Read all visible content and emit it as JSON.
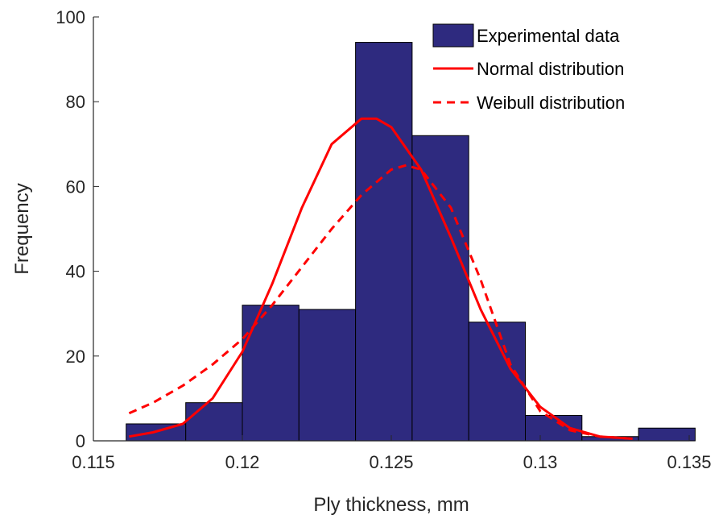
{
  "chart_data": {
    "type": "bar",
    "title": "",
    "xlabel": "Ply thickness, mm",
    "ylabel": "Frequency",
    "xlim": [
      0.115,
      0.135
    ],
    "ylim": [
      0,
      100
    ],
    "x_ticks": [
      0.115,
      0.12,
      0.125,
      0.13,
      0.135
    ],
    "x_tick_labels": [
      "0.115",
      "0.12",
      "0.125",
      "0.13",
      "0.135"
    ],
    "y_ticks": [
      0,
      20,
      40,
      60,
      80,
      100
    ],
    "y_tick_labels": [
      "0",
      "20",
      "40",
      "60",
      "80",
      "100"
    ],
    "grid": false,
    "legend_position": "top-right",
    "histogram": {
      "name": "Experimental data",
      "bin_edges": [
        0.1161,
        0.1181,
        0.12,
        0.1219,
        0.1238,
        0.1257,
        0.1276,
        0.1295,
        0.1314,
        0.1333,
        0.1352
      ],
      "counts": [
        4,
        9,
        32,
        31,
        94,
        72,
        28,
        6,
        1,
        3
      ],
      "color": "#2e2a7f"
    },
    "series": [
      {
        "name": "Normal distribution",
        "style": "solid",
        "color": "#ff0000",
        "x": [
          0.1162,
          0.117,
          0.118,
          0.119,
          0.12,
          0.121,
          0.122,
          0.123,
          0.124,
          0.1245,
          0.125,
          0.126,
          0.127,
          0.128,
          0.129,
          0.13,
          0.131,
          0.132,
          0.1331
        ],
        "y": [
          1,
          2,
          4,
          10,
          21,
          37,
          55,
          70,
          76,
          76,
          74,
          64,
          48,
          31,
          17,
          8,
          3,
          1,
          0.5
        ]
      },
      {
        "name": "Weibull distribution",
        "style": "dashed",
        "color": "#ff0000",
        "x": [
          0.1162,
          0.117,
          0.118,
          0.119,
          0.12,
          0.121,
          0.122,
          0.123,
          0.124,
          0.125,
          0.1255,
          0.126,
          0.127,
          0.128,
          0.129,
          0.13,
          0.131,
          0.132,
          0.1331
        ],
        "y": [
          6.5,
          9,
          13,
          18,
          24,
          32,
          41,
          50,
          58,
          64,
          65,
          64,
          55,
          38,
          18,
          7,
          2.5,
          1,
          0.5
        ]
      }
    ],
    "legend": [
      "Experimental data",
      "Normal distribution",
      "Weibull distribution"
    ]
  }
}
